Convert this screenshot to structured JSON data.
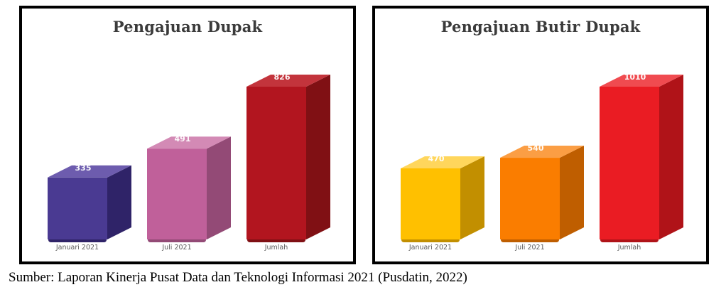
{
  "caption": "Sumber: Laporan Kinerja Pusat Data dan Teknologi Informasi 2021 (Pusdatin, 2022)",
  "chart_data": [
    {
      "type": "bar",
      "projection": "3d",
      "title": "Pengajuan Dupak",
      "categories": [
        "Januari 2021",
        "Juli 2021",
        "Jumlah"
      ],
      "values": [
        335,
        491,
        826
      ],
      "data_labels": [
        "335",
        "491",
        "826"
      ],
      "bar_colors": [
        {
          "front": "#4a3a92",
          "top": "#6d5cae",
          "side": "#2f2368"
        },
        {
          "front": "#c0609a",
          "top": "#d38ab5",
          "side": "#934a76"
        },
        {
          "front": "#b2151f",
          "top": "#c3343c",
          "side": "#801014"
        }
      ],
      "legend": false,
      "grid": false,
      "title_color": "#3b3b3b"
    },
    {
      "type": "bar",
      "projection": "3d",
      "title": "Pengajuan Butir Dupak",
      "categories": [
        "Januari 2021",
        "Juli 2021",
        "Jumlah"
      ],
      "values": [
        470,
        540,
        1010
      ],
      "data_labels": [
        "470",
        "540",
        "1010"
      ],
      "bar_colors": [
        {
          "front": "#ffc000",
          "top": "#ffd65c",
          "side": "#c28f00"
        },
        {
          "front": "#fa7d00",
          "top": "#fb9e44",
          "side": "#bf5e00"
        },
        {
          "front": "#ea1c23",
          "top": "#f04b50",
          "side": "#b01318"
        }
      ],
      "legend": false,
      "grid": false,
      "title_color": "#3b3b3b"
    }
  ]
}
